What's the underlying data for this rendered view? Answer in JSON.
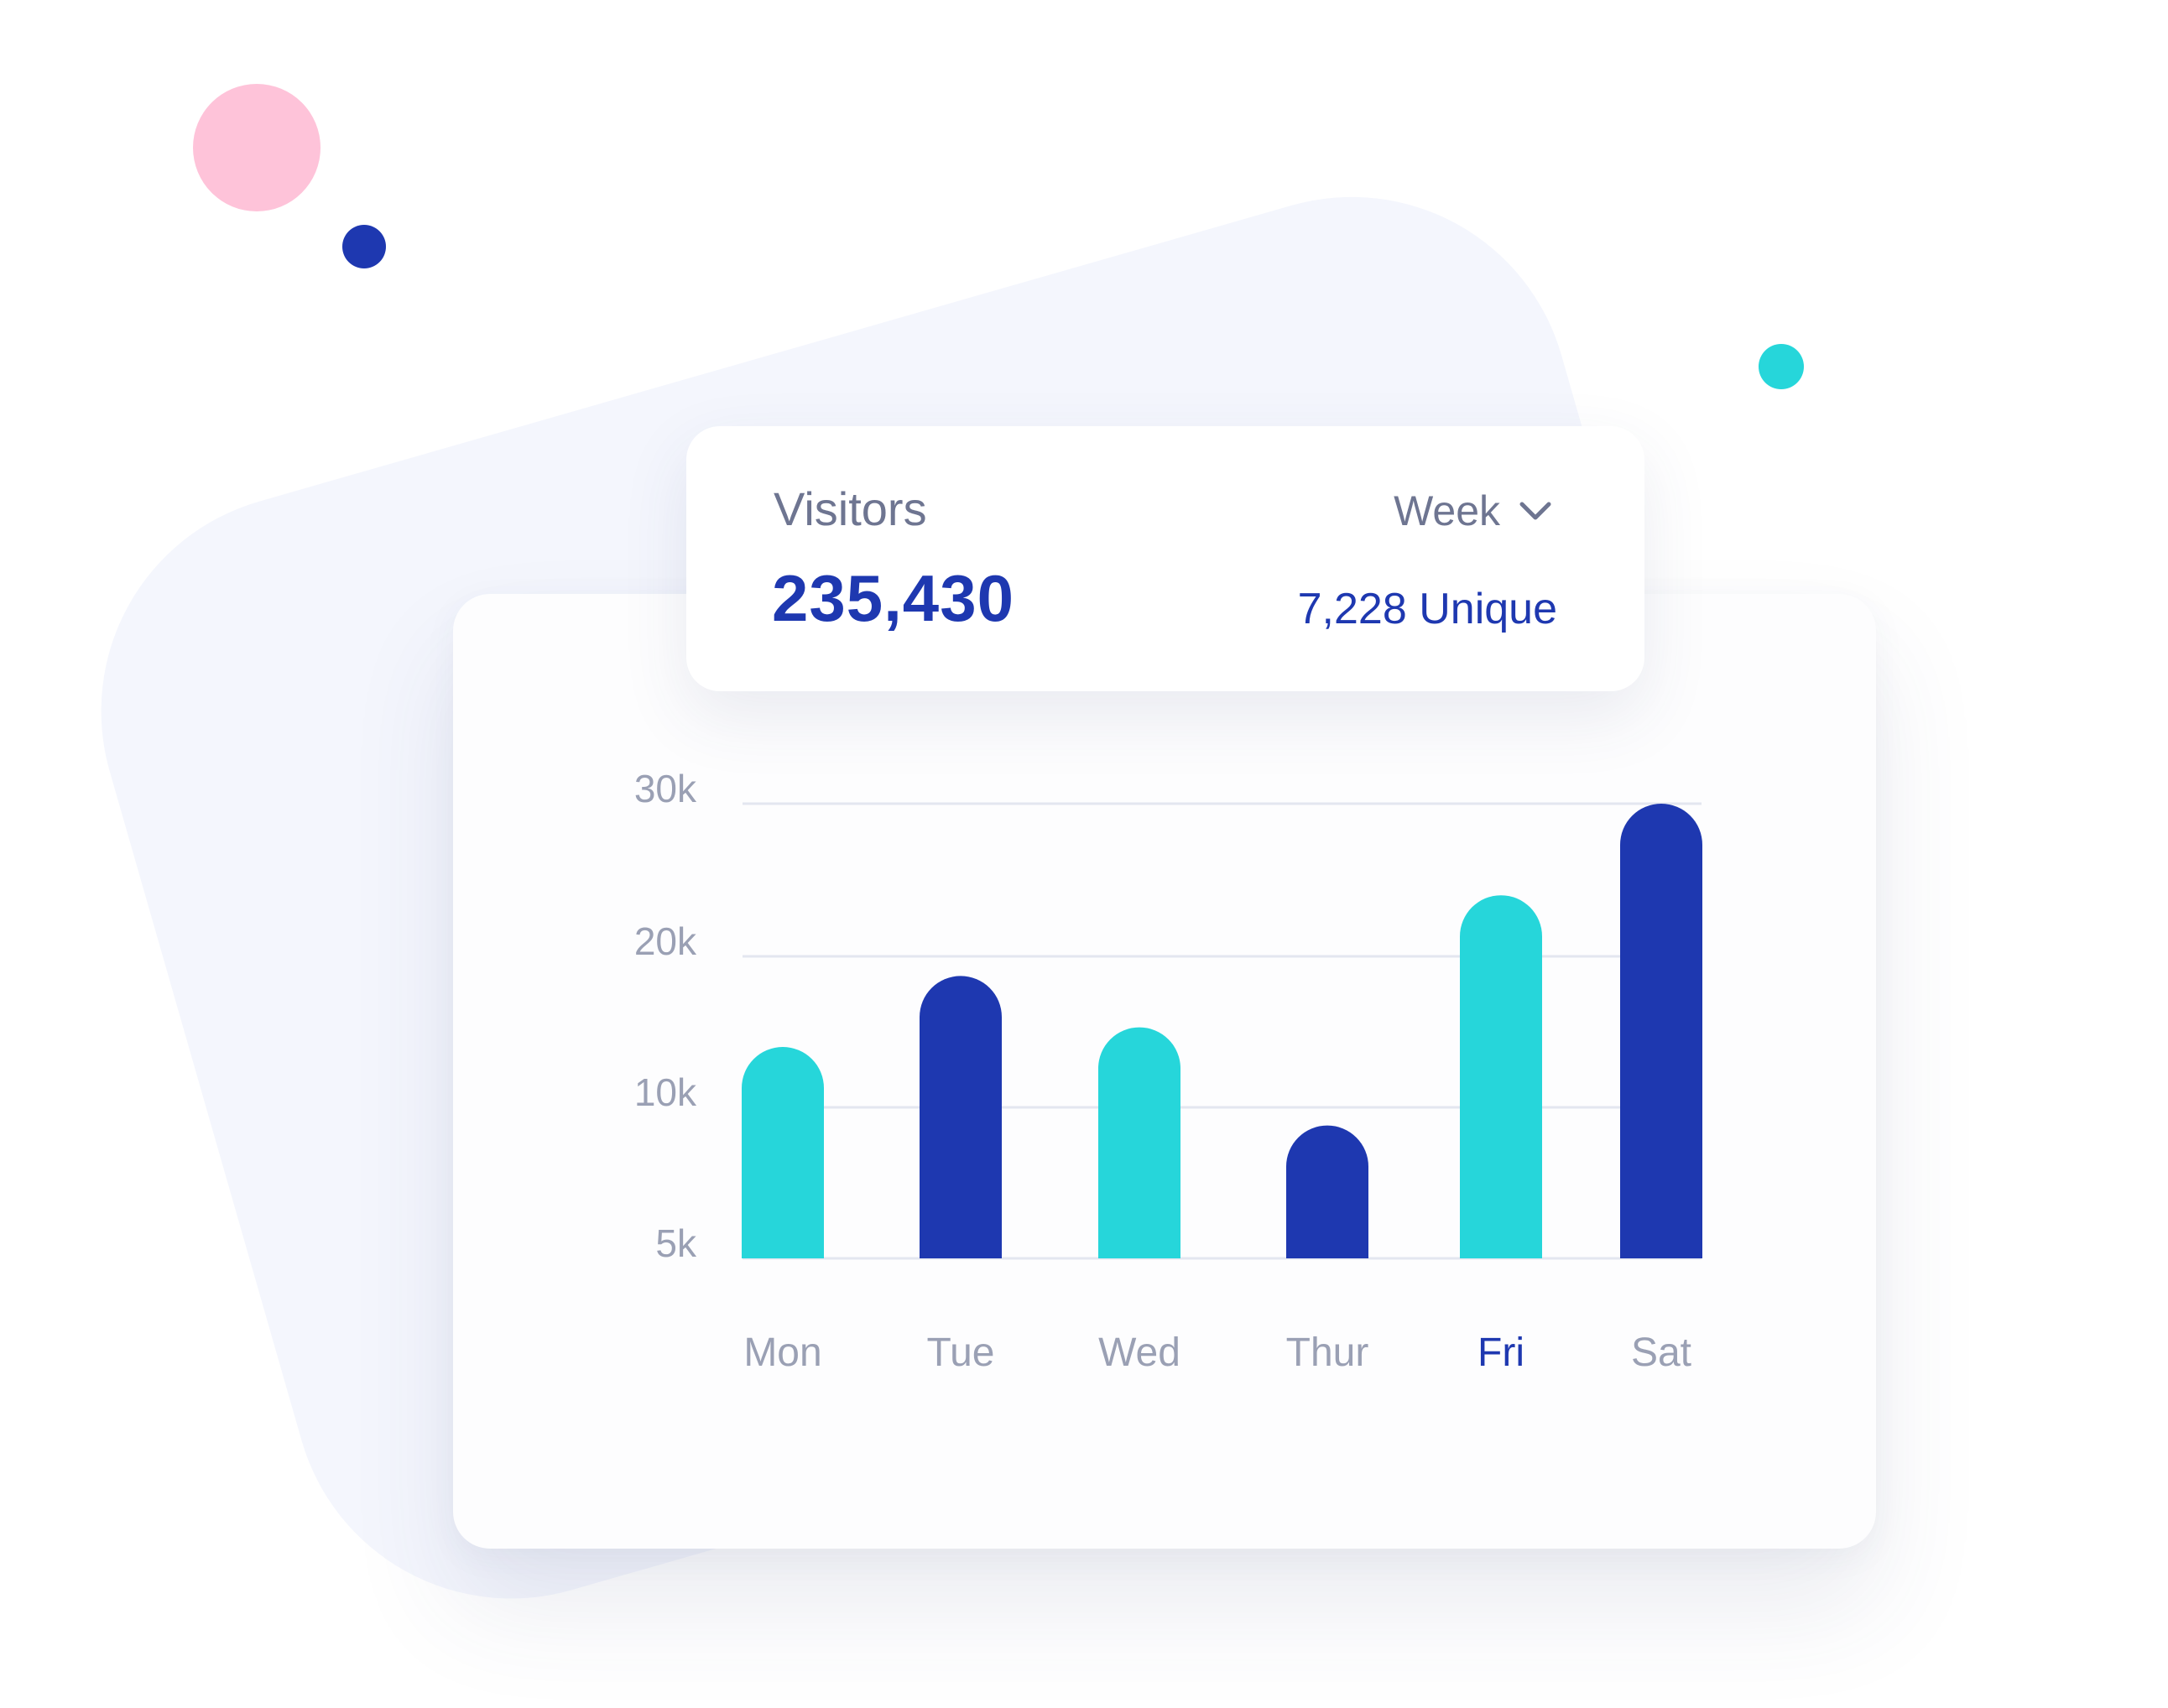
{
  "header": {
    "title": "Visitors",
    "total": "235,430",
    "period_label": "Week",
    "unique_label": "7,228 Unique"
  },
  "colors": {
    "navy": "#1e38b0",
    "teal": "#26d6da",
    "pink": "#fec3d9",
    "axis_text": "#9aa0b4",
    "grid": "#e3e6f0",
    "highlight_label": "#1e38b0"
  },
  "icons": {
    "period_dropdown": "chevron-down-icon"
  },
  "chart_data": {
    "type": "bar",
    "title": "",
    "xlabel": "",
    "ylabel": "",
    "categories": [
      "Mon",
      "Tue",
      "Wed",
      "Thur",
      "Fri",
      "Sat"
    ],
    "values": [
      14000,
      18700,
      15300,
      9400,
      24000,
      30000
    ],
    "bar_colors": [
      "#26d6da",
      "#1e38b0",
      "#26d6da",
      "#1e38b0",
      "#26d6da",
      "#1e38b0"
    ],
    "highlighted_category": "Fri",
    "y_ticks": [
      {
        "value": 5000,
        "label": "5k"
      },
      {
        "value": 10000,
        "label": "10k"
      },
      {
        "value": 20000,
        "label": "20k"
      },
      {
        "value": 30000,
        "label": "30k"
      }
    ],
    "ylim": [
      5000,
      30000
    ],
    "grid": true,
    "legend": "none"
  }
}
